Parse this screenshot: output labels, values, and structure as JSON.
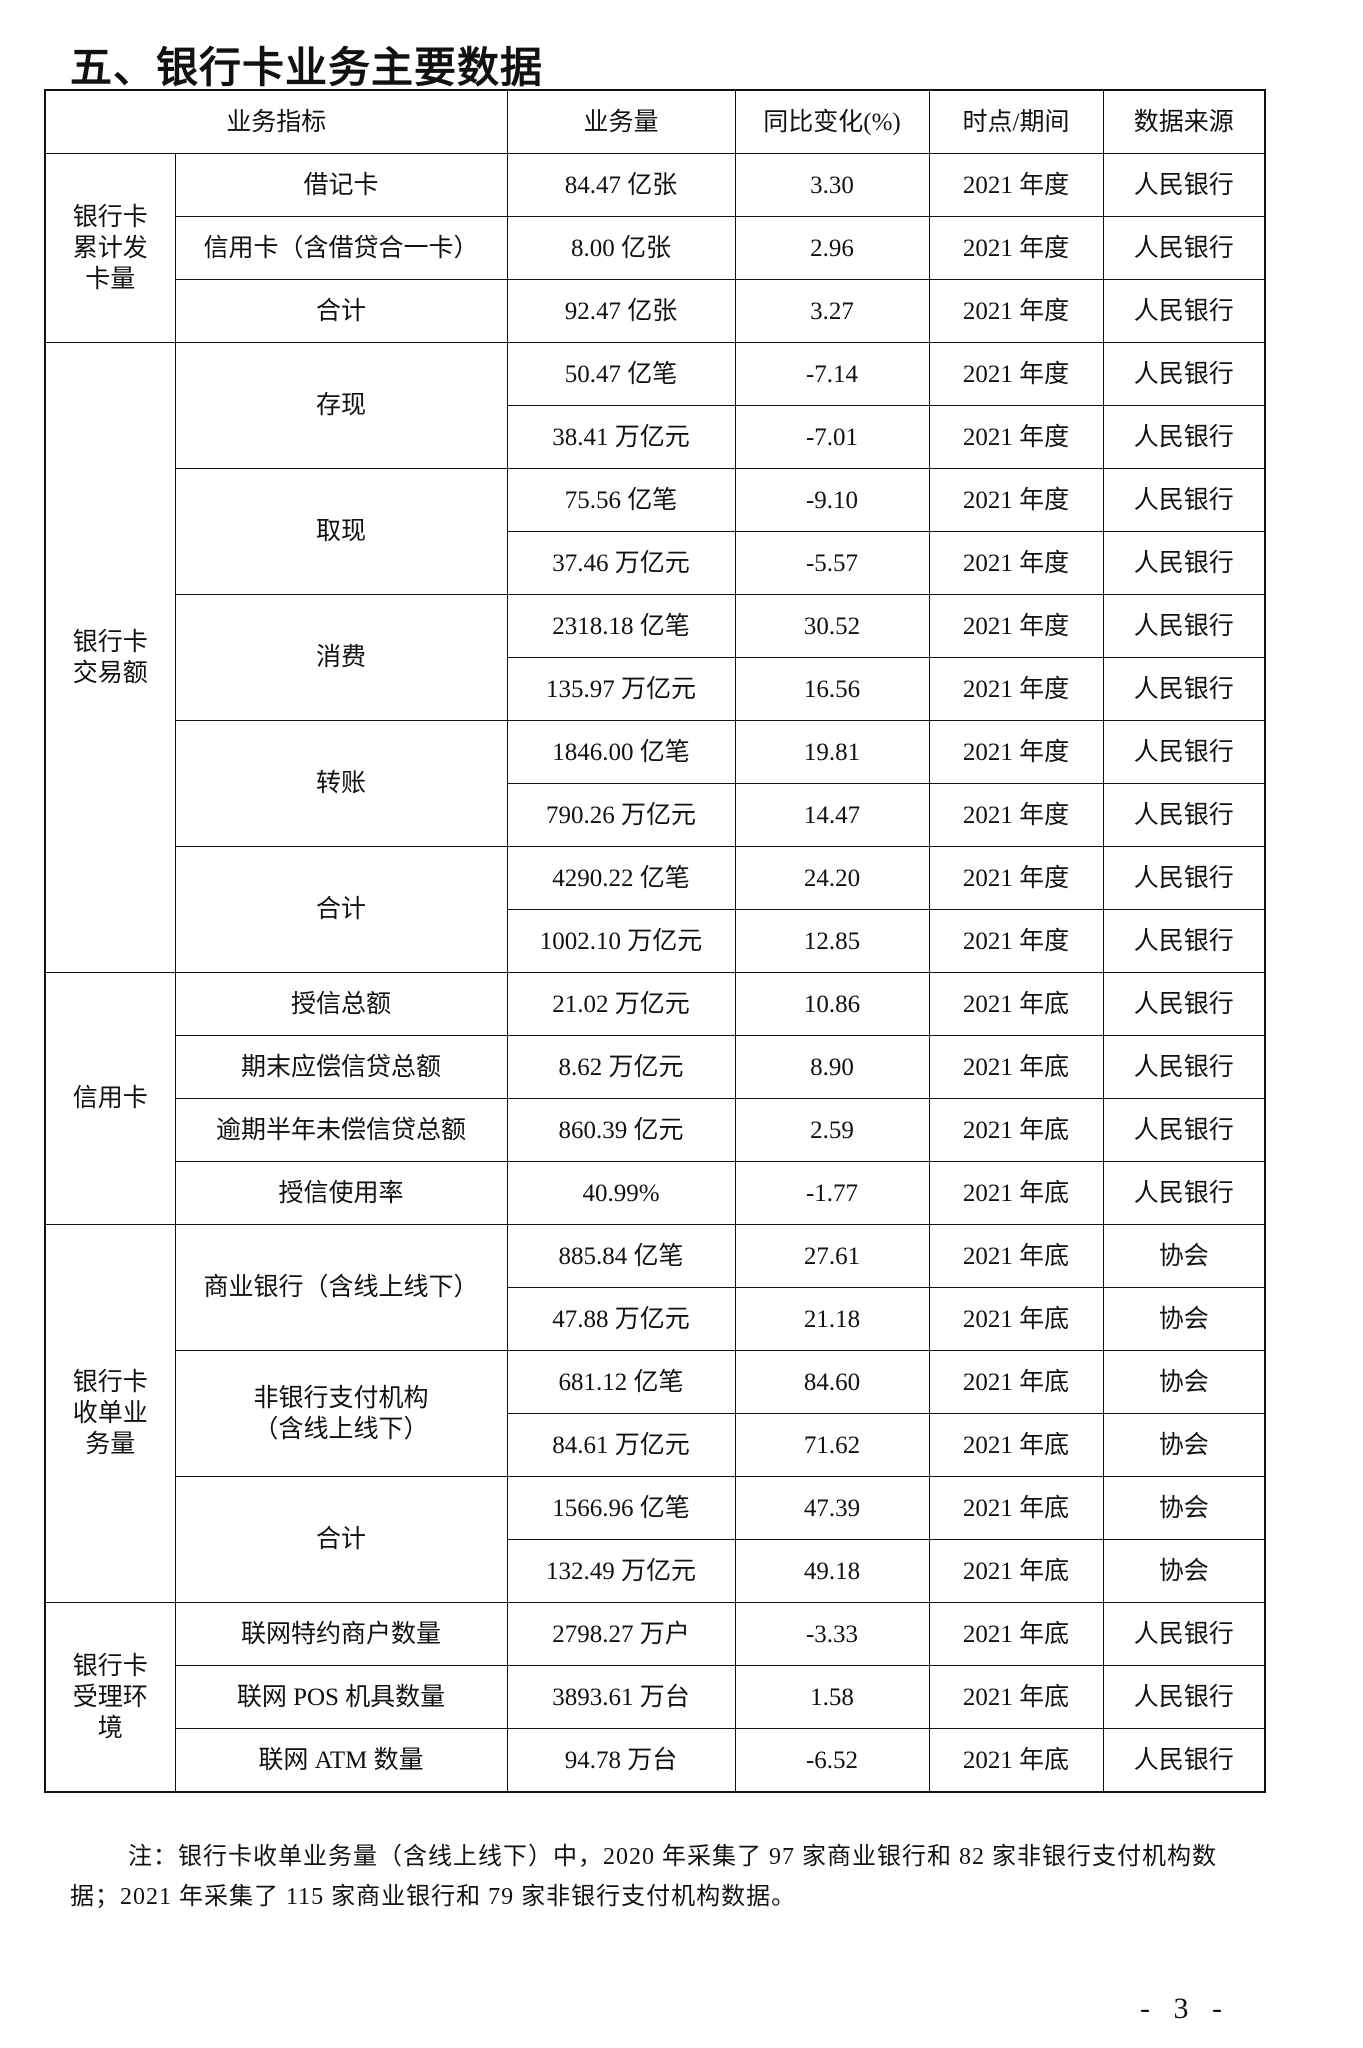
{
  "title": "五、银行卡业务主要数据",
  "headers": [
    "业务指标",
    "业务量",
    "同比变化(%)",
    "时点/期间",
    "数据来源"
  ],
  "groups": [
    {
      "label": "银行卡\n累计发\n卡量",
      "items": [
        {
          "label": "借记卡",
          "rows": [
            [
              "84.47 亿张",
              "3.30",
              "2021 年度",
              "人民银行"
            ]
          ]
        },
        {
          "label": "信用卡（含借贷合一卡）",
          "rows": [
            [
              "8.00 亿张",
              "2.96",
              "2021 年度",
              "人民银行"
            ]
          ]
        },
        {
          "label": "合计",
          "rows": [
            [
              "92.47 亿张",
              "3.27",
              "2021 年度",
              "人民银行"
            ]
          ]
        }
      ]
    },
    {
      "label": "银行卡\n交易额",
      "items": [
        {
          "label": "存现",
          "rows": [
            [
              "50.47 亿笔",
              "-7.14",
              "2021 年度",
              "人民银行"
            ],
            [
              "38.41 万亿元",
              "-7.01",
              "2021 年度",
              "人民银行"
            ]
          ]
        },
        {
          "label": "取现",
          "rows": [
            [
              "75.56 亿笔",
              "-9.10",
              "2021 年度",
              "人民银行"
            ],
            [
              "37.46 万亿元",
              "-5.57",
              "2021 年度",
              "人民银行"
            ]
          ]
        },
        {
          "label": "消费",
          "rows": [
            [
              "2318.18 亿笔",
              "30.52",
              "2021 年度",
              "人民银行"
            ],
            [
              "135.97 万亿元",
              "16.56",
              "2021 年度",
              "人民银行"
            ]
          ]
        },
        {
          "label": "转账",
          "rows": [
            [
              "1846.00 亿笔",
              "19.81",
              "2021 年度",
              "人民银行"
            ],
            [
              "790.26 万亿元",
              "14.47",
              "2021 年度",
              "人民银行"
            ]
          ]
        },
        {
          "label": "合计",
          "rows": [
            [
              "4290.22 亿笔",
              "24.20",
              "2021 年度",
              "人民银行"
            ],
            [
              "1002.10 万亿元",
              "12.85",
              "2021 年度",
              "人民银行"
            ]
          ]
        }
      ]
    },
    {
      "label": "信用卡",
      "items": [
        {
          "label": "授信总额",
          "rows": [
            [
              "21.02 万亿元",
              "10.86",
              "2021 年底",
              "人民银行"
            ]
          ]
        },
        {
          "label": "期末应偿信贷总额",
          "rows": [
            [
              "8.62 万亿元",
              "8.90",
              "2021 年底",
              "人民银行"
            ]
          ]
        },
        {
          "label": "逾期半年未偿信贷总额",
          "rows": [
            [
              "860.39 亿元",
              "2.59",
              "2021 年底",
              "人民银行"
            ]
          ]
        },
        {
          "label": "授信使用率",
          "rows": [
            [
              "40.99%",
              "-1.77",
              "2021 年底",
              "人民银行"
            ]
          ]
        }
      ]
    },
    {
      "label": "银行卡\n收单业\n务量",
      "items": [
        {
          "label": "商业银行（含线上线下）",
          "rows": [
            [
              "885.84 亿笔",
              "27.61",
              "2021 年底",
              "协会"
            ],
            [
              "47.88 万亿元",
              "21.18",
              "2021 年底",
              "协会"
            ]
          ]
        },
        {
          "label": "非银行支付机构\n（含线上线下）",
          "rows": [
            [
              "681.12 亿笔",
              "84.60",
              "2021 年底",
              "协会"
            ],
            [
              "84.61 万亿元",
              "71.62",
              "2021 年底",
              "协会"
            ]
          ]
        },
        {
          "label": "合计",
          "rows": [
            [
              "1566.96 亿笔",
              "47.39",
              "2021 年底",
              "协会"
            ],
            [
              "132.49 万亿元",
              "49.18",
              "2021 年底",
              "协会"
            ]
          ]
        }
      ]
    },
    {
      "label": "银行卡\n受理环\n境",
      "items": [
        {
          "label": "联网特约商户数量",
          "rows": [
            [
              "2798.27 万户",
              "-3.33",
              "2021 年底",
              "人民银行"
            ]
          ]
        },
        {
          "label": "联网 POS 机具数量",
          "rows": [
            [
              "3893.61 万台",
              "1.58",
              "2021 年底",
              "人民银行"
            ]
          ]
        },
        {
          "label": "联网 ATM 数量",
          "rows": [
            [
              "94.78 万台",
              "-6.52",
              "2021 年底",
              "人民银行"
            ]
          ]
        }
      ]
    }
  ],
  "note": "注：银行卡收单业务量（含线上线下）中，2020 年采集了 97 家商业银行和 82 家非银行支付机构数据；2021 年采集了 115 家商业银行和 79 家非银行支付机构数据。",
  "page_number": "- 3 -"
}
